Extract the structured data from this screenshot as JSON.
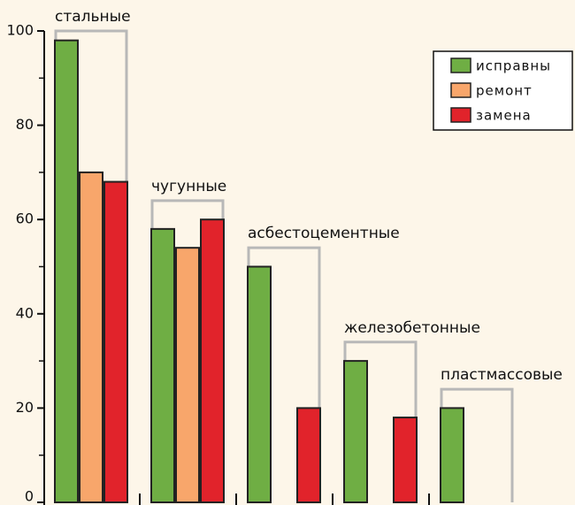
{
  "chart_data": {
    "type": "bar",
    "categories": [
      "стальные",
      "чугунные",
      "асбестоцементные",
      "железобетонные",
      "пластмассовые"
    ],
    "series": [
      {
        "name": "исправны",
        "color": "#6fae44",
        "values": [
          98,
          58,
          50,
          30,
          20
        ]
      },
      {
        "name": "ремонт",
        "color": "#f8a66b",
        "values": [
          70,
          54,
          null,
          null,
          null
        ]
      },
      {
        "name": "замена",
        "color": "#e1232b",
        "values": [
          68,
          60,
          20,
          18,
          null
        ]
      }
    ],
    "ylim": [
      0,
      100
    ],
    "yticks": [
      0,
      20,
      40,
      60,
      80,
      100
    ],
    "legend": "upper right"
  }
}
